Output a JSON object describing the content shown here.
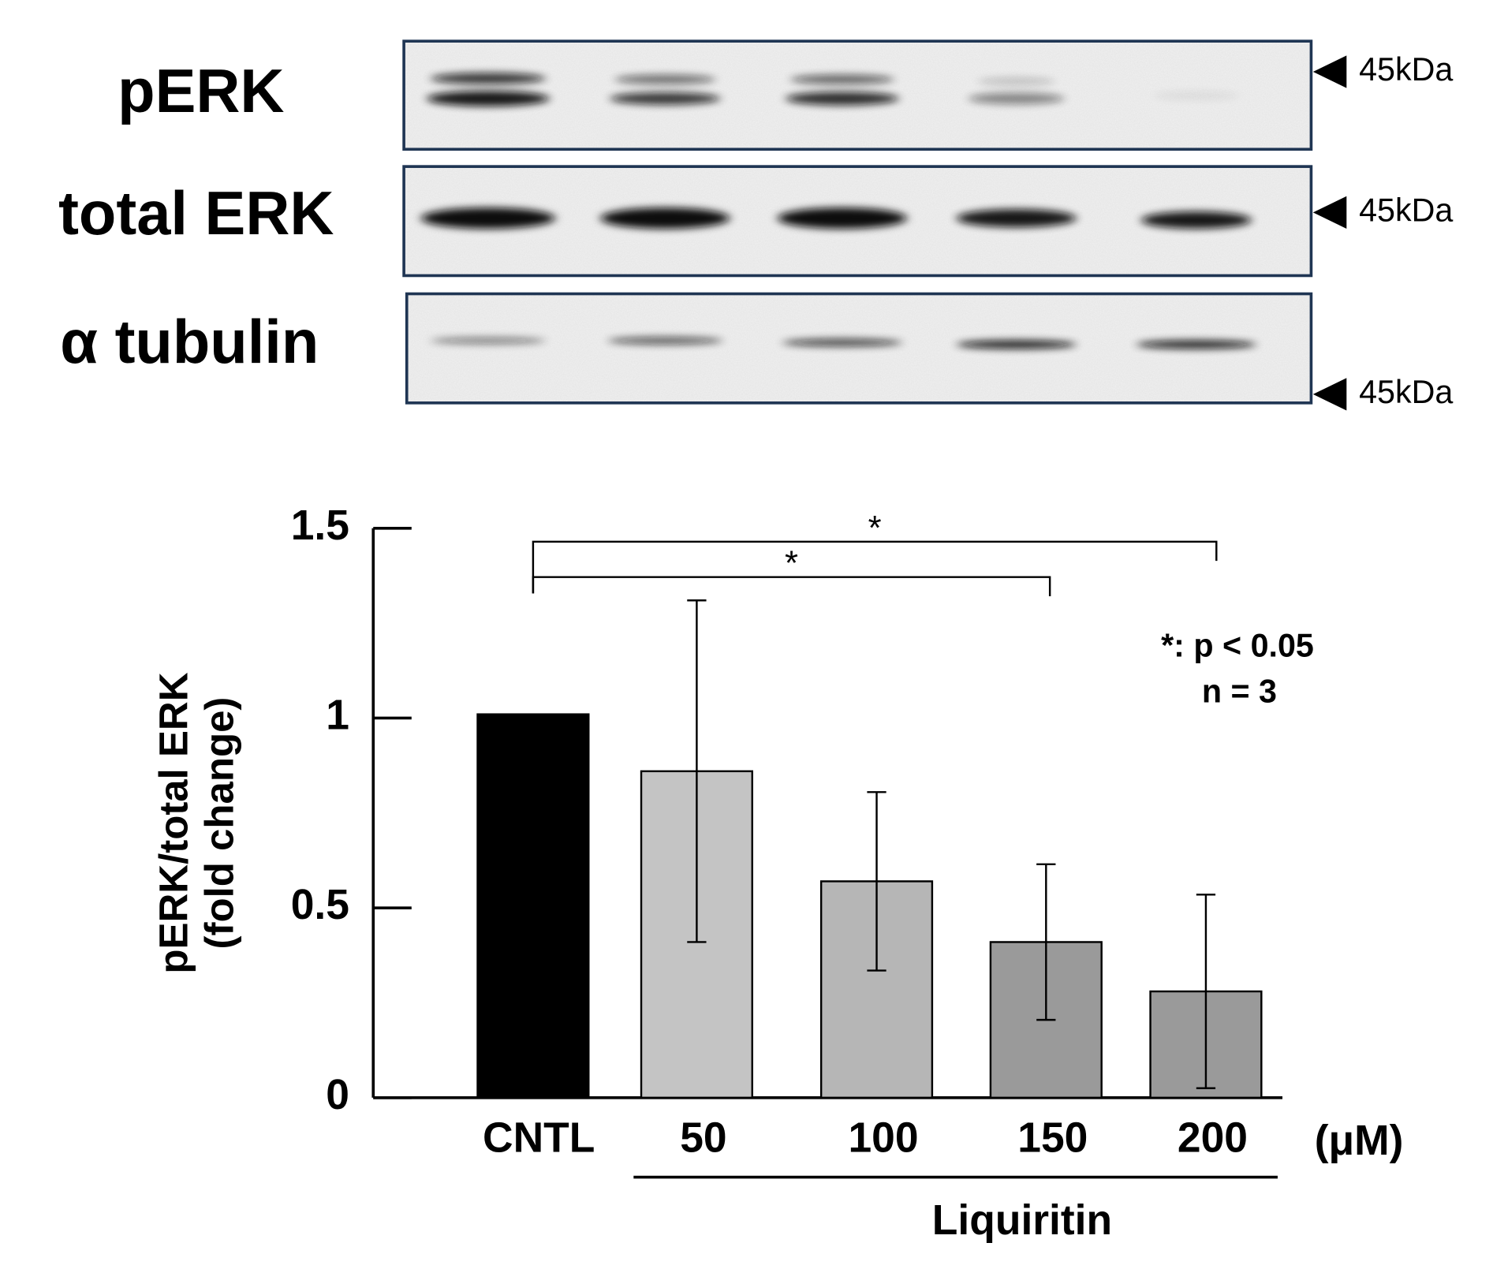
{
  "blot": {
    "rows": [
      {
        "label": "pERK",
        "marker": "45kDa"
      },
      {
        "label": "total ERK",
        "marker": "45kDa"
      },
      {
        "label": "α tubulin",
        "marker": "45kDa"
      }
    ]
  },
  "chart_data": {
    "type": "bar",
    "categories": [
      "CNTL",
      "50",
      "100",
      "150",
      "200"
    ],
    "values": [
      1.01,
      0.86,
      0.57,
      0.41,
      0.28
    ],
    "errors": [
      null,
      0.45,
      0.235,
      0.205,
      0.255
    ],
    "colors": [
      "#000000",
      "#c4c4c4",
      "#b6b6b6",
      "#9a9a9a",
      "#9a9a9a"
    ],
    "ylim": [
      0,
      1.5
    ],
    "yticks": [
      0,
      0.5,
      1,
      1.5
    ],
    "y_label": [
      "pERK/total ERK",
      "(fold change)"
    ],
    "unit": "(μM)",
    "group_label": "Liquiritin",
    "significance": [
      {
        "from": "CNTL",
        "to": "200",
        "label": "*"
      },
      {
        "from": "CNTL",
        "to": "150",
        "label": "*"
      }
    ],
    "note": [
      "*: p < 0.05",
      "n = 3"
    ]
  }
}
